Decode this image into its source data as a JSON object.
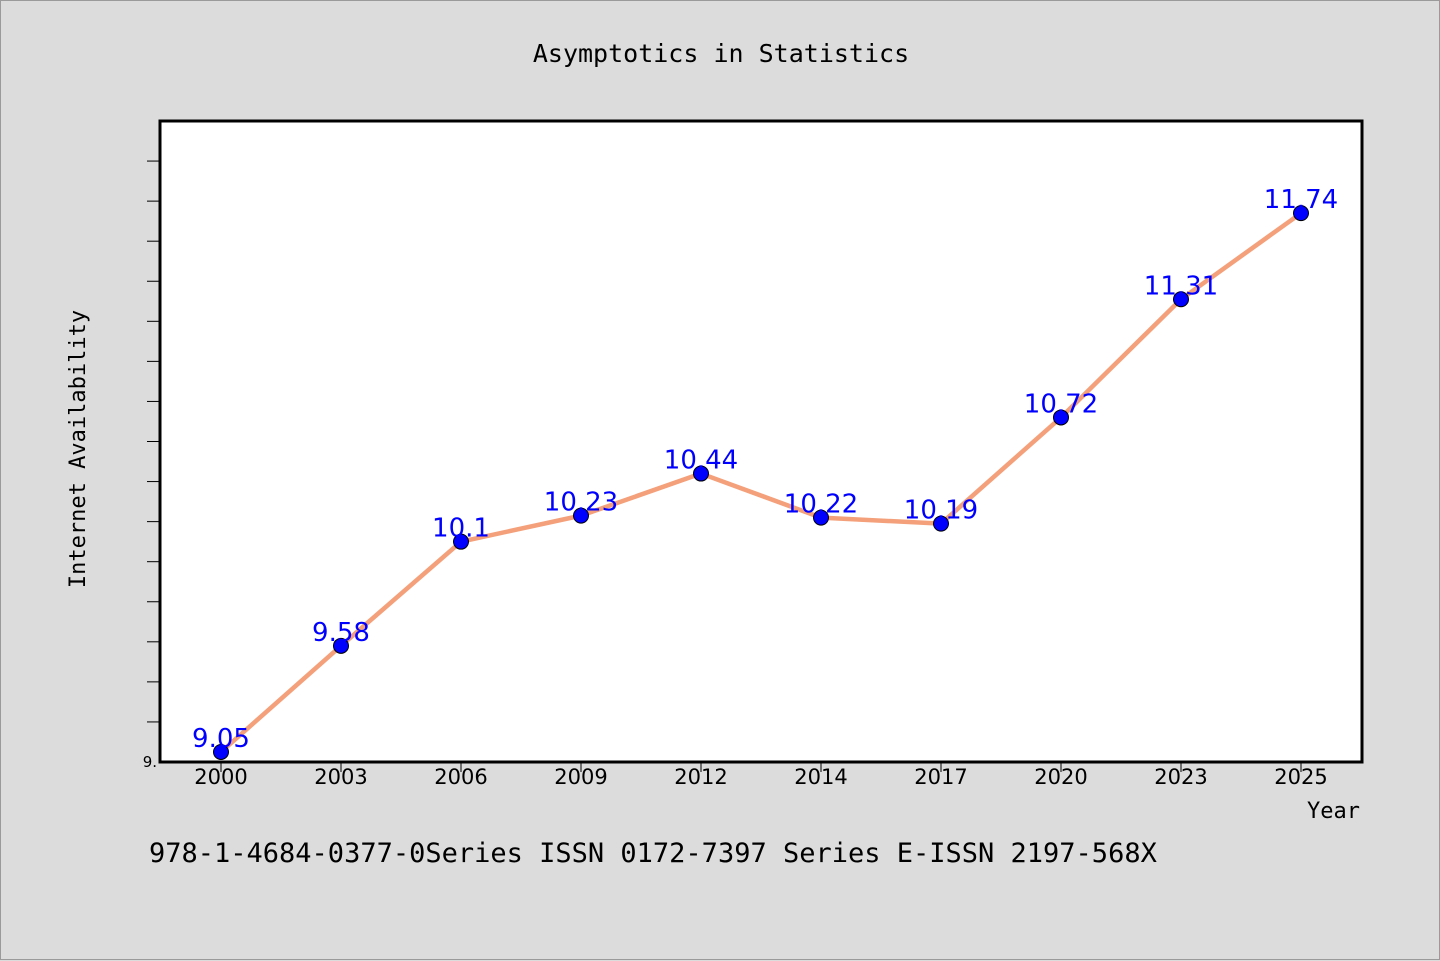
{
  "chart_data": {
    "type": "line",
    "title": "Asymptotics in Statistics",
    "xlabel": "Year",
    "ylabel": "Internet Availability",
    "categories": [
      "2000",
      "2003",
      "2006",
      "2009",
      "2012",
      "2014",
      "2017",
      "2020",
      "2023",
      "2025"
    ],
    "series": [
      {
        "values": [
          9.05,
          9.58,
          10.1,
          10.23,
          10.44,
          10.22,
          10.19,
          10.72,
          11.31,
          11.74
        ],
        "labels": [
          "9.05",
          "9.58",
          "10.1",
          "10.23",
          "10.44",
          "10.22",
          "10.19",
          "10.72",
          "11.31",
          "11.74"
        ]
      }
    ],
    "y_tick_labels": [
      "9."
    ],
    "ylim": [
      9.0,
      12.2
    ],
    "y_minor_tick_step": 0.2,
    "grid": false,
    "line_color": "#f4a07a",
    "marker_color": "#0000ff",
    "label_color": "#0000ff"
  },
  "footer": {
    "text": "978-1-4684-0377-0Series ISSN 0172-7397 Series E-ISSN 2197-568X"
  }
}
